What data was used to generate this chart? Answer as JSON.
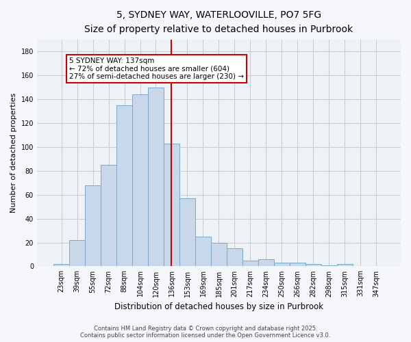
{
  "title_line1": "5, SYDNEY WAY, WATERLOOVILLE, PO7 5FG",
  "title_line2": "Size of property relative to detached houses in Purbrook",
  "xlabel": "Distribution of detached houses by size in Purbrook",
  "ylabel": "Number of detached properties",
  "bar_labels": [
    "23sqm",
    "39sqm",
    "55sqm",
    "72sqm",
    "88sqm",
    "104sqm",
    "120sqm",
    "136sqm",
    "153sqm",
    "169sqm",
    "185sqm",
    "201sqm",
    "217sqm",
    "234sqm",
    "250sqm",
    "266sqm",
    "282sqm",
    "298sqm",
    "315sqm",
    "331sqm",
    "347sqm"
  ],
  "bar_values": [
    2,
    22,
    68,
    85,
    135,
    144,
    150,
    103,
    57,
    25,
    20,
    15,
    5,
    6,
    3,
    3,
    2,
    1,
    2,
    0,
    0
  ],
  "bar_color": "#c8d8ea",
  "bar_edge_color": "#7aaac8",
  "vline_color": "#cc0000",
  "annotation_text": "5 SYDNEY WAY: 137sqm\n← 72% of detached houses are smaller (604)\n27% of semi-detached houses are larger (230) →",
  "annotation_box_color": "#ffffff",
  "annotation_box_edge_color": "#cc0000",
  "ylim": [
    0,
    190
  ],
  "yticks": [
    0,
    20,
    40,
    60,
    80,
    100,
    120,
    140,
    160,
    180
  ],
  "grid_color": "#cccccc",
  "bg_color": "#eef2f7",
  "footer_line1": "Contains HM Land Registry data © Crown copyright and database right 2025.",
  "footer_line2": "Contains public sector information licensed under the Open Government Licence v3.0.",
  "title_fontsize": 10,
  "subtitle_fontsize": 9,
  "tick_fontsize": 7,
  "ylabel_fontsize": 8,
  "xlabel_fontsize": 8.5,
  "annotation_fontsize": 7.5,
  "footer_fontsize": 6
}
